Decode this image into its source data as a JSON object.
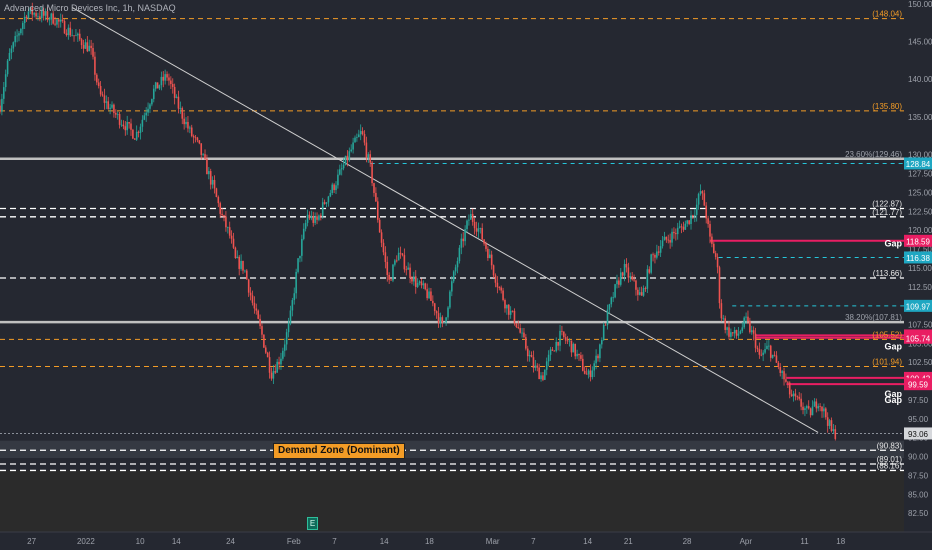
{
  "header": {
    "title": "Advanced Micro Devices Inc, 1h, NASDAQ"
  },
  "chart_data": {
    "type": "candlestick",
    "title": "Advanced Micro Devices Inc, 1h, NASDAQ",
    "ylim": [
      80.0,
      150.5
    ],
    "xlim": [
      0,
      100
    ],
    "y_ticks": [
      "150.00",
      "145.00",
      "140.00",
      "135.00",
      "130.00",
      "127.50",
      "125.00",
      "122.50",
      "120.00",
      "117.50",
      "115.00",
      "112.50",
      "110.00",
      "107.50",
      "105.00",
      "102.50",
      "100.00",
      "97.50",
      "95.00",
      "92.50",
      "90.00",
      "87.50",
      "85.00",
      "82.50"
    ],
    "x_ticks": [
      {
        "x": 3.5,
        "label": "27"
      },
      {
        "x": 9.5,
        "label": "2022"
      },
      {
        "x": 15.5,
        "label": "10"
      },
      {
        "x": 19.5,
        "label": "14"
      },
      {
        "x": 25.5,
        "label": "24"
      },
      {
        "x": 32.5,
        "label": "Feb"
      },
      {
        "x": 37,
        "label": "7"
      },
      {
        "x": 42.5,
        "label": "14"
      },
      {
        "x": 47.5,
        "label": "18"
      },
      {
        "x": 54.5,
        "label": "Mar"
      },
      {
        "x": 59,
        "label": "7"
      },
      {
        "x": 65,
        "label": "14"
      },
      {
        "x": 69.5,
        "label": "21"
      },
      {
        "x": 76,
        "label": "28"
      },
      {
        "x": 82.5,
        "label": "Apr"
      },
      {
        "x": 89,
        "label": "11"
      },
      {
        "x": 93,
        "label": "18"
      }
    ],
    "anchors": [
      [
        0,
        136.5
      ],
      [
        1,
        143
      ],
      [
        3,
        149
      ],
      [
        6,
        148
      ],
      [
        8,
        146
      ],
      [
        10,
        144
      ],
      [
        11,
        138
      ],
      [
        13,
        135
      ],
      [
        15,
        132.5
      ],
      [
        16,
        135.5
      ],
      [
        17,
        138.5
      ],
      [
        18.5,
        140.5
      ],
      [
        19.5,
        137
      ],
      [
        21,
        133
      ],
      [
        22,
        131
      ],
      [
        23.5,
        126
      ],
      [
        24.5,
        122
      ],
      [
        25.5,
        119
      ],
      [
        26,
        116
      ],
      [
        27,
        115
      ],
      [
        28,
        110
      ],
      [
        29,
        106
      ],
      [
        30,
        101
      ],
      [
        31,
        103
      ],
      [
        32,
        107.5
      ],
      [
        33,
        116
      ],
      [
        34,
        122
      ],
      [
        35,
        121
      ],
      [
        36,
        124
      ],
      [
        37,
        126
      ],
      [
        39,
        131
      ],
      [
        40,
        133
      ],
      [
        41,
        128
      ],
      [
        42,
        120
      ],
      [
        43,
        113
      ],
      [
        44,
        117
      ],
      [
        45,
        115
      ],
      [
        46,
        113
      ],
      [
        47,
        112
      ],
      [
        48,
        110
      ],
      [
        49,
        107
      ],
      [
        50,
        113
      ],
      [
        51,
        118
      ],
      [
        52,
        122
      ],
      [
        53,
        120
      ],
      [
        54,
        117
      ],
      [
        55,
        113
      ],
      [
        56,
        110
      ],
      [
        57,
        108
      ],
      [
        58,
        105
      ],
      [
        59,
        102
      ],
      [
        60,
        100.5
      ],
      [
        61,
        104
      ],
      [
        62,
        106
      ],
      [
        63,
        105
      ],
      [
        64,
        103
      ],
      [
        65,
        100.5
      ],
      [
        66,
        103
      ],
      [
        67,
        108
      ],
      [
        68,
        112
      ],
      [
        69,
        115
      ],
      [
        70,
        113
      ],
      [
        71,
        111
      ],
      [
        72,
        116
      ],
      [
        73,
        118
      ],
      [
        74,
        119
      ],
      [
        75,
        120
      ],
      [
        76,
        121
      ],
      [
        77,
        123
      ],
      [
        77.5,
        125.2
      ],
      [
        78,
        123
      ],
      [
        78.5,
        118.8
      ],
      [
        79.3,
        116
      ],
      [
        79.7,
        109
      ],
      [
        80.5,
        106.5
      ],
      [
        81.5,
        106
      ],
      [
        82.5,
        108
      ],
      [
        83.5,
        105.5
      ],
      [
        84,
        103
      ],
      [
        85,
        104.5
      ],
      [
        86,
        102
      ],
      [
        86.7,
        100.4
      ],
      [
        87.5,
        98
      ],
      [
        88.5,
        97
      ],
      [
        89.5,
        95.6
      ],
      [
        90.5,
        97.5
      ],
      [
        91.5,
        95
      ],
      [
        92,
        93.2
      ],
      [
        92.5,
        93.06
      ]
    ],
    "horizontal_levels": [
      {
        "price": 148.04,
        "style": "orange-dashed",
        "label": "(148.04)"
      },
      {
        "price": 135.8,
        "style": "orange-dashed",
        "label": "(135.80)"
      },
      {
        "price": 129.46,
        "style": "gray-solid",
        "label": "23.60%(129.46)"
      },
      {
        "price": 128.84,
        "style": "cyan-dashed",
        "badge": "128.84"
      },
      {
        "price": 122.87,
        "style": "white-dashed",
        "label": "(122.87)"
      },
      {
        "price": 121.77,
        "style": "white-dashed",
        "label": "(121.77)"
      },
      {
        "price": 118.59,
        "style": "magenta-solid",
        "badge": "118.59"
      },
      {
        "price": 116.38,
        "style": "cyan-dashed",
        "badge": "116.38"
      },
      {
        "price": 113.66,
        "style": "white-dashed",
        "label": "(113.66)"
      },
      {
        "price": 109.97,
        "style": "cyan-dashed",
        "badge": "109.97"
      },
      {
        "price": 107.81,
        "style": "gray-solid",
        "label": "38.20%(107.81)"
      },
      {
        "price": 106.05,
        "style": "magenta-solid",
        "badge": "106.05"
      },
      {
        "price": 105.74,
        "style": "magenta-solid",
        "badge": "105.74"
      },
      {
        "price": 105.52,
        "style": "orange-dashed",
        "label": "(105.52)"
      },
      {
        "price": 101.94,
        "style": "orange-dashed",
        "label": "(101.94)"
      },
      {
        "price": 100.42,
        "style": "magenta-solid",
        "badge": "100.42"
      },
      {
        "price": 99.59,
        "style": "magenta-solid",
        "badge": "99.59"
      },
      {
        "price": 93.06,
        "style": "price-line",
        "badge": "93.06"
      },
      {
        "price": 90.83,
        "style": "white-dashed",
        "label": "(90.83)"
      },
      {
        "price": 89.01,
        "style": "white-dashed",
        "label": "(89.01)"
      },
      {
        "price": 88.16,
        "style": "white-dashed",
        "label": "(88.16)"
      }
    ],
    "gap_labels": [
      {
        "price": 118.2,
        "label": "Gap"
      },
      {
        "price": 104.6,
        "label": "Gap"
      },
      {
        "price": 98.3,
        "label": "Gap"
      },
      {
        "price": 97.5,
        "label": "Gap"
      }
    ],
    "trendline": {
      "x1": 8,
      "y1": 149.5,
      "x2": 90.5,
      "y2": 93.2
    },
    "demand_zone": {
      "label": "Demand Zone (Dominant)",
      "price_top": 92.1,
      "price_bottom": 89.8
    },
    "event_marker": {
      "label": "E"
    },
    "colors": {
      "background": "#252831",
      "up": "#26a69a",
      "down": "#ef5350",
      "orange": "#f39c26",
      "magenta": "#e91e63",
      "cyan": "#26c6da"
    }
  }
}
